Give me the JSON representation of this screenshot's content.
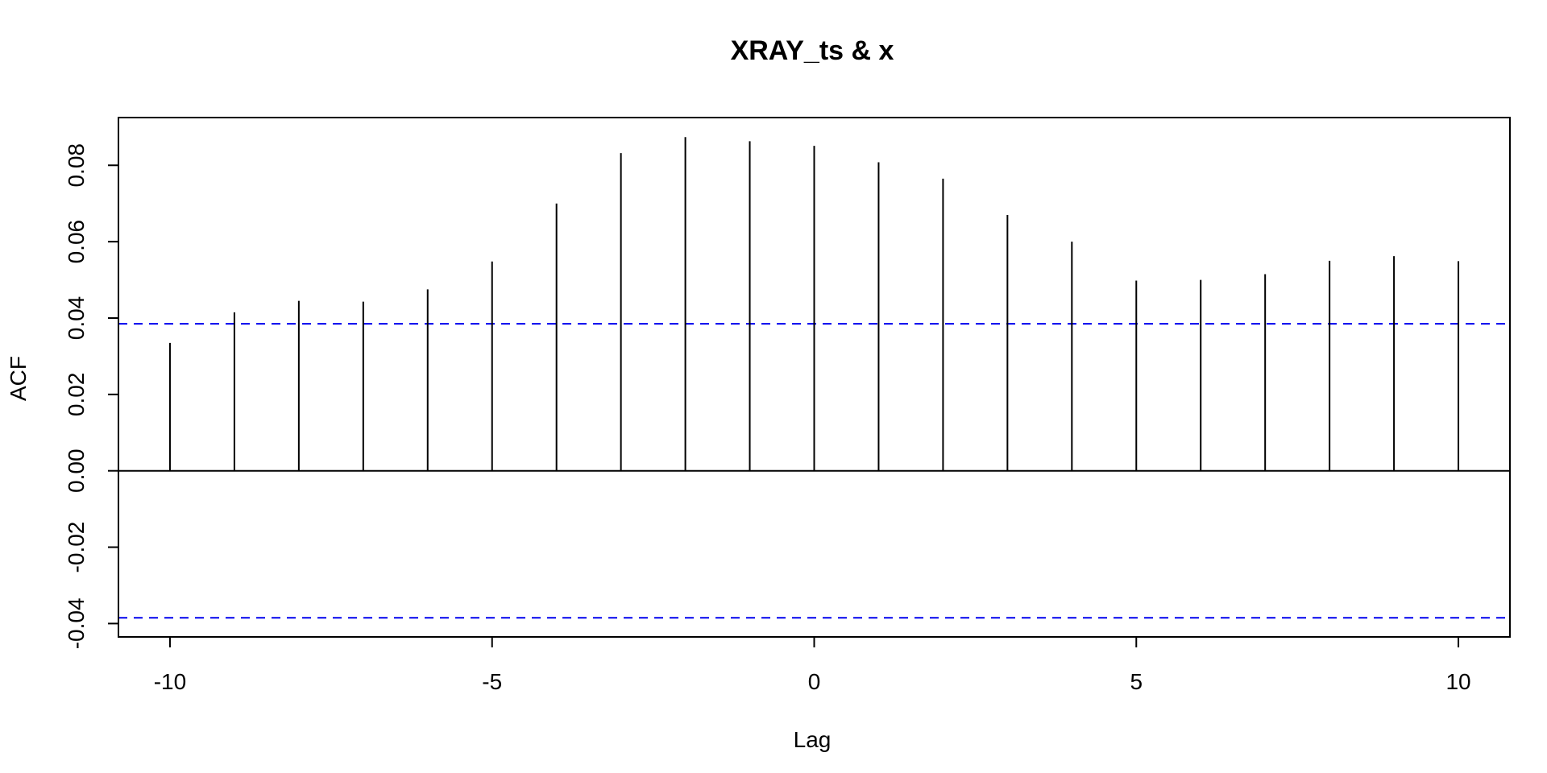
{
  "chart_data": {
    "type": "bar",
    "title": "XRAY_ts & x",
    "xlabel": "Lag",
    "ylabel": "ACF",
    "x": [
      -10,
      -9,
      -8,
      -7,
      -6,
      -5,
      -4,
      -3,
      -2,
      -1,
      0,
      1,
      2,
      3,
      4,
      5,
      6,
      7,
      8,
      9,
      10
    ],
    "values": [
      0.0335,
      0.0415,
      0.0445,
      0.0443,
      0.0475,
      0.0548,
      0.07,
      0.0832,
      0.0874,
      0.0863,
      0.0851,
      0.0808,
      0.0765,
      0.067,
      0.06,
      0.0498,
      0.05,
      0.0515,
      0.055,
      0.0562,
      0.0549
    ],
    "confidence_limit": 0.0385,
    "xlim": [
      -10.8,
      10.8
    ],
    "ylim": [
      -0.0435,
      0.0925
    ],
    "x_ticks": [
      -10,
      -5,
      0,
      5,
      10
    ],
    "x_tick_labels": [
      "-10",
      "-5",
      "0",
      "5",
      "10"
    ],
    "y_ticks": [
      -0.04,
      -0.02,
      0.0,
      0.02,
      0.04,
      0.06,
      0.08
    ],
    "y_tick_labels": [
      "-0.04",
      "-0.02",
      "0.00",
      "0.02",
      "0.04",
      "0.06",
      "0.08"
    ],
    "grid": false,
    "colors": {
      "bars": "#000000",
      "confidence_lines": "#0000ee",
      "axes": "#000000"
    }
  }
}
